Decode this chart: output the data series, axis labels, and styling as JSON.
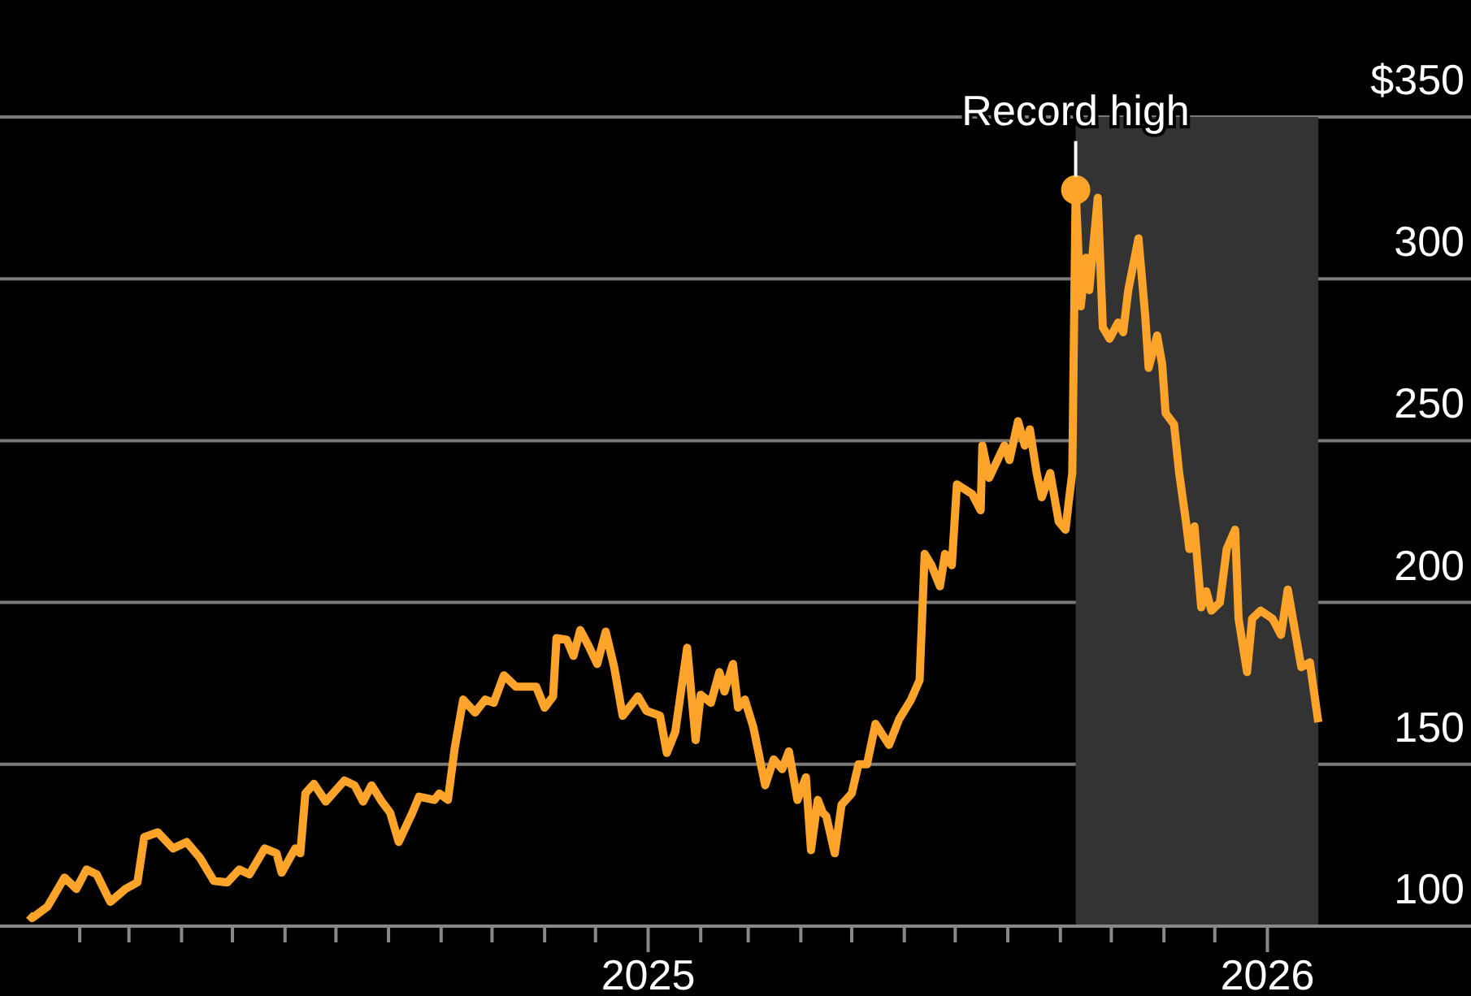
{
  "chart_data": {
    "type": "line",
    "x": [
      "2024-01-02",
      "2024-01-04",
      "2024-01-13",
      "2024-01-23",
      "2024-01-30",
      "2024-02-05",
      "2024-02-11",
      "2024-02-19",
      "2024-02-28",
      "2024-03-06",
      "2024-03-10",
      "2024-03-18",
      "2024-03-27",
      "2024-04-04",
      "2024-04-12",
      "2024-04-20",
      "2024-04-28",
      "2024-05-05",
      "2024-05-11",
      "2024-05-20",
      "2024-05-27",
      "2024-05-30",
      "2024-06-07",
      "2024-06-10",
      "2024-06-13",
      "2024-06-18",
      "2024-06-25",
      "2024-07-06",
      "2024-07-12",
      "2024-07-17",
      "2024-07-22",
      "2024-07-28",
      "2024-08-02",
      "2024-08-07",
      "2024-08-15",
      "2024-08-19",
      "2024-08-28",
      "2024-08-31",
      "2024-09-05",
      "2024-09-09",
      "2024-09-14",
      "2024-09-21",
      "2024-09-27",
      "2024-10-02",
      "2024-10-08",
      "2024-10-15",
      "2024-10-27",
      "2024-11-01",
      "2024-11-06",
      "2024-11-08",
      "2024-11-14",
      "2024-11-18",
      "2024-11-22",
      "2024-11-27",
      "2024-12-02",
      "2024-12-07",
      "2024-12-12",
      "2024-12-17",
      "2024-12-26",
      "2024-12-31",
      "2025-01-08",
      "2025-01-12",
      "2025-01-17",
      "2025-01-24",
      "2025-01-29",
      "2025-02-01",
      "2025-02-07",
      "2025-02-12",
      "2025-02-15",
      "2025-02-20",
      "2025-02-23",
      "2025-02-27",
      "2025-03-04",
      "2025-03-11",
      "2025-03-16",
      "2025-03-21",
      "2025-03-25",
      "2025-03-30",
      "2025-04-04",
      "2025-04-07",
      "2025-04-11",
      "2025-04-14",
      "2025-04-16",
      "2025-04-21",
      "2025-04-25",
      "2025-05-01",
      "2025-05-05",
      "2025-05-10",
      "2025-05-15",
      "2025-05-23",
      "2025-05-29",
      "2025-06-05",
      "2025-06-10",
      "2025-06-13",
      "2025-06-17",
      "2025-06-22",
      "2025-06-25",
      "2025-06-29",
      "2025-07-02",
      "2025-07-11",
      "2025-07-16",
      "2025-07-17",
      "2025-07-21",
      "2025-07-30",
      "2025-08-02",
      "2025-08-07",
      "2025-08-11",
      "2025-08-14",
      "2025-08-18",
      "2025-08-21",
      "2025-08-26",
      "2025-08-31",
      "2025-09-04",
      "2025-09-06",
      "2025-09-08",
      "2025-09-10",
      "2025-09-13",
      "2025-09-16",
      "2025-09-18",
      "2025-09-23",
      "2025-09-26",
      "2025-09-30",
      "2025-10-05",
      "2025-10-08",
      "2025-10-11",
      "2025-10-17",
      "2025-10-21",
      "2025-10-23",
      "2025-10-28",
      "2025-10-31",
      "2025-11-02",
      "2025-11-07",
      "2025-11-10",
      "2025-11-14",
      "2025-11-16",
      "2025-11-19",
      "2025-11-23",
      "2025-11-26",
      "2025-11-29",
      "2025-12-04",
      "2025-12-08",
      "2025-12-13",
      "2025-12-15",
      "2025-12-20",
      "2025-12-23",
      "2025-12-28",
      "2026-01-04",
      "2026-01-09",
      "2026-01-13",
      "2026-01-16",
      "2026-01-21",
      "2026-01-26",
      "2026-01-31"
    ],
    "series": [
      {
        "color": "#ffa42b",
        "values": [
          103.5,
          102.5,
          106,
          115,
          111.5,
          117.5,
          116,
          107.5,
          111.5,
          113.5,
          127.5,
          129,
          124,
          126,
          121,
          114,
          113.5,
          117.5,
          116,
          124,
          122.5,
          116.5,
          124,
          122.5,
          141,
          144,
          138.5,
          145,
          143.5,
          138.5,
          143.5,
          138.5,
          135,
          126,
          135,
          140,
          139,
          141,
          139,
          155,
          170,
          166,
          170,
          169,
          177.5,
          174,
          174,
          167.5,
          171,
          189,
          188.5,
          183.5,
          191.5,
          186.5,
          181,
          191,
          180,
          165,
          171,
          166.5,
          165,
          153.5,
          160,
          186,
          157.5,
          171.5,
          169,
          178.5,
          172.5,
          181,
          167.5,
          170,
          161.5,
          143.5,
          151.5,
          148.5,
          154,
          139,
          146,
          123.5,
          139,
          135,
          134,
          122.5,
          137.5,
          141,
          150,
          150,
          162.5,
          156,
          164,
          170,
          176,
          215,
          211.5,
          205,
          215,
          211.5,
          236.5,
          233.5,
          228.5,
          248.5,
          238.5,
          248.5,
          244,
          256,
          248.5,
          253.5,
          240,
          232.5,
          240,
          225,
          222.5,
          231.5,
          240,
          327.5,
          291.5,
          306.5,
          296.5,
          325,
          285,
          281.5,
          286.5,
          283.5,
          296.5,
          312.5,
          288.5,
          272.5,
          282.5,
          273.5,
          258.5,
          255,
          240,
          225,
          216.5,
          223.5,
          198.5,
          203.5,
          197.5,
          200,
          216.5,
          222.5,
          195,
          178.5,
          195,
          197.5,
          195,
          190,
          204,
          195,
          180,
          181.5,
          163
        ]
      }
    ],
    "annotations": [
      {
        "text": "Record high",
        "x": "2025-09-10",
        "y": 327.5
      }
    ],
    "bands": [
      {
        "axis": "x",
        "from": "2025-09-10",
        "to": "2026-01-31",
        "color": "#333333"
      }
    ],
    "xlim": [
      "2023-12-16",
      "2026-05-01"
    ],
    "xticks": [
      {
        "value": "2024-02-01",
        "label": null
      },
      {
        "value": "2024-03-01",
        "label": null
      },
      {
        "value": "2024-04-01",
        "label": null
      },
      {
        "value": "2024-05-01",
        "label": null
      },
      {
        "value": "2024-06-01",
        "label": null
      },
      {
        "value": "2024-07-01",
        "label": null
      },
      {
        "value": "2024-08-01",
        "label": null
      },
      {
        "value": "2024-09-01",
        "label": null
      },
      {
        "value": "2024-10-01",
        "label": null
      },
      {
        "value": "2024-11-01",
        "label": null
      },
      {
        "value": "2024-12-01",
        "label": null
      },
      {
        "value": "2025-01-01",
        "label": "2025"
      },
      {
        "value": "2025-02-01",
        "label": null
      },
      {
        "value": "2025-03-01",
        "label": null
      },
      {
        "value": "2025-04-01",
        "label": null
      },
      {
        "value": "2025-05-01",
        "label": null
      },
      {
        "value": "2025-06-01",
        "label": null
      },
      {
        "value": "2025-07-01",
        "label": null
      },
      {
        "value": "2025-08-01",
        "label": null
      },
      {
        "value": "2025-09-01",
        "label": null
      },
      {
        "value": "2025-10-01",
        "label": null
      },
      {
        "value": "2025-11-01",
        "label": null
      },
      {
        "value": "2025-12-01",
        "label": null
      },
      {
        "value": "2026-01-01",
        "label": "2026"
      }
    ],
    "ylim": [
      100,
      350
    ],
    "yticks": [
      100,
      150,
      200,
      250,
      {
        "value": 300,
        "label": "300"
      },
      {
        "value": 350,
        "label": "$350"
      }
    ],
    "grid": "y",
    "legend": false,
    "marker": "none",
    "line_style": "solid"
  }
}
